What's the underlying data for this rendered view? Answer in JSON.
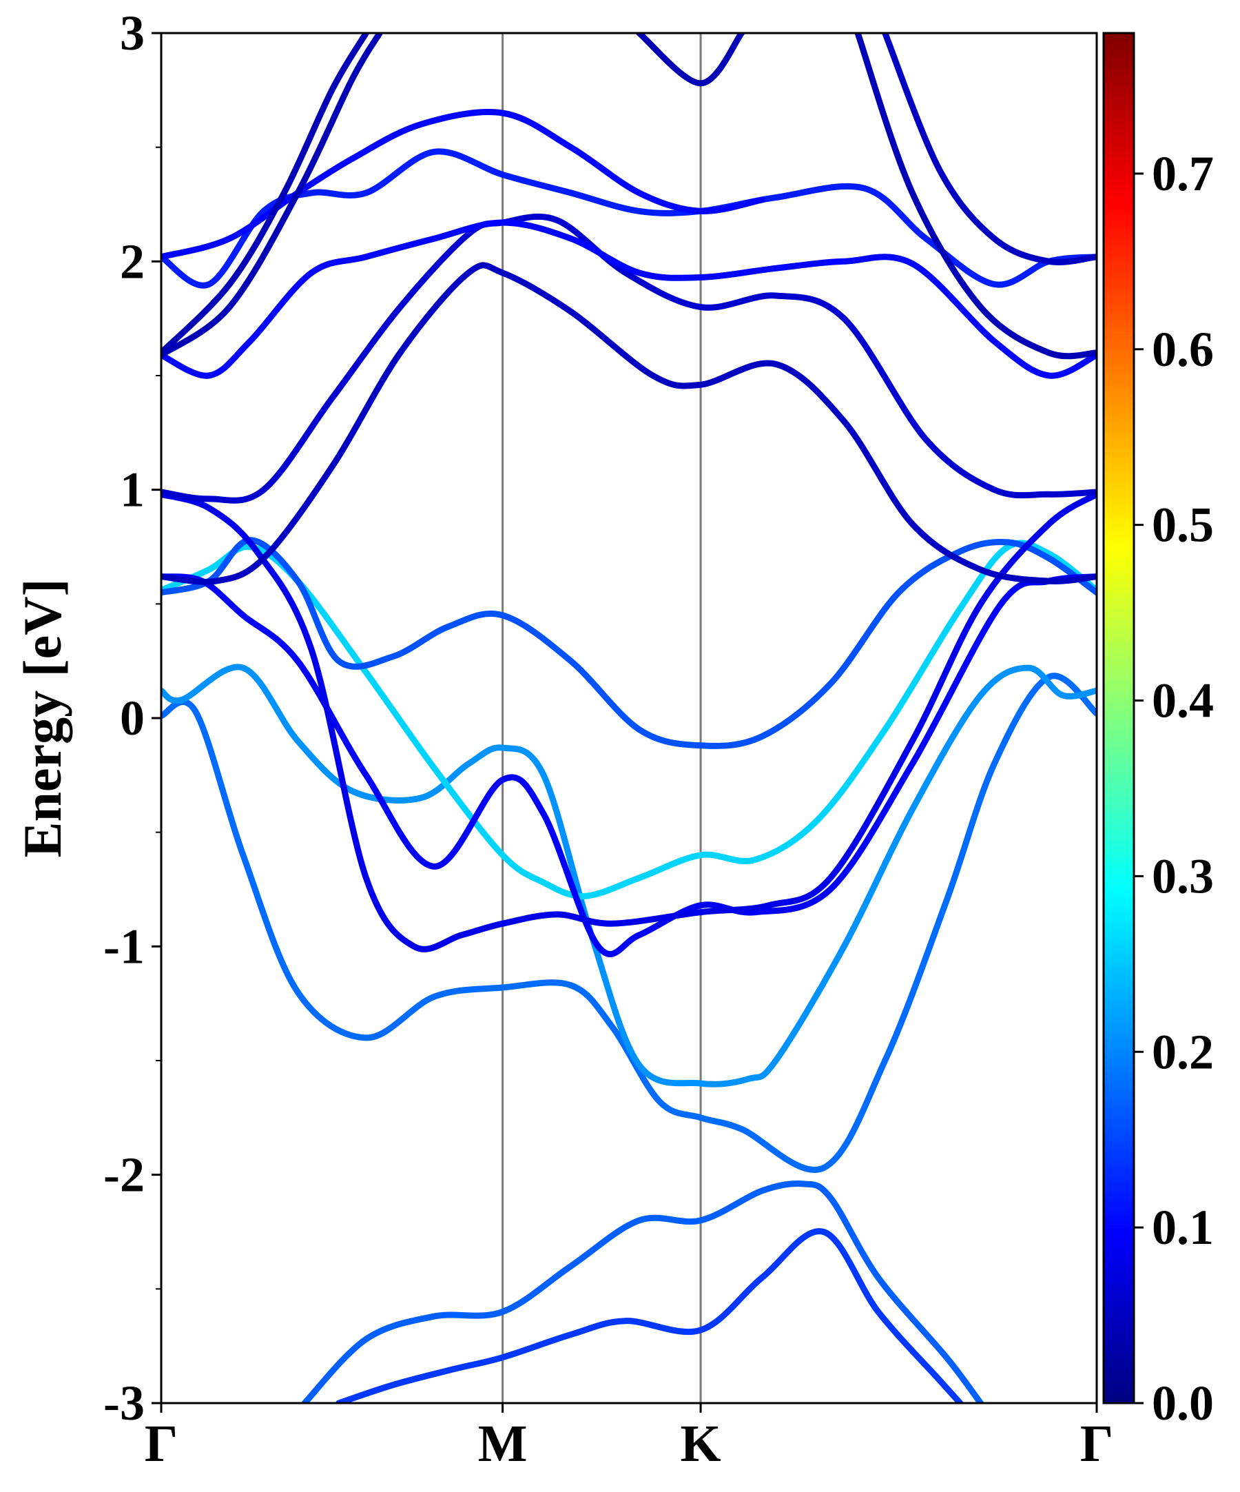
{
  "chart_data": {
    "type": "line",
    "title": "",
    "xlabel": "",
    "ylabel": "Energy [eV]",
    "ylim": [
      -3,
      3
    ],
    "y_ticks": [
      {
        "value": 3,
        "label": "3"
      },
      {
        "value": 2,
        "label": "2"
      },
      {
        "value": 1,
        "label": "1"
      },
      {
        "value": 0,
        "label": "0"
      },
      {
        "value": -1,
        "label": "-1"
      },
      {
        "value": -2,
        "label": "-2"
      },
      {
        "value": -3,
        "label": "-3"
      }
    ],
    "y_minor_ticks": [
      2.5,
      1.5,
      0.5,
      -0.5,
      -1.5,
      -2.5
    ],
    "kpath": [
      {
        "name": "gamma-start",
        "label": "Γ",
        "x": 0.0
      },
      {
        "name": "m-point",
        "label": "M",
        "x": 0.5
      },
      {
        "name": "k-point",
        "label": "K",
        "x": 0.79
      },
      {
        "name": "gamma-end",
        "label": "Γ",
        "x": 1.37
      }
    ],
    "colorbar": {
      "colormap": "jet",
      "range": [
        0.0,
        0.78
      ],
      "ticks": [
        {
          "value": 0.0,
          "label": "0.0"
        },
        {
          "value": 0.1,
          "label": "0.1"
        },
        {
          "value": 0.2,
          "label": "0.2"
        },
        {
          "value": 0.3,
          "label": "0.3"
        },
        {
          "value": 0.4,
          "label": "0.4"
        },
        {
          "value": 0.5,
          "label": "0.5"
        },
        {
          "value": 0.6,
          "label": "0.6"
        },
        {
          "value": 0.7,
          "label": "0.7"
        }
      ]
    },
    "series": [
      {
        "name": "band-1",
        "weight": 0.17,
        "points": [
          [
            0.21,
            -3.0
          ],
          [
            0.3,
            -2.72
          ],
          [
            0.4,
            -2.62
          ],
          [
            0.5,
            -2.6
          ],
          [
            0.6,
            -2.4
          ],
          [
            0.7,
            -2.2
          ],
          [
            0.79,
            -2.2
          ],
          [
            0.88,
            -2.07
          ],
          [
            0.94,
            -2.04
          ],
          [
            0.98,
            -2.1
          ],
          [
            1.05,
            -2.45
          ],
          [
            1.15,
            -2.8
          ],
          [
            1.2,
            -3.0
          ]
        ]
      },
      {
        "name": "band-2",
        "weight": 0.14,
        "points": [
          [
            0.26,
            -3.0
          ],
          [
            0.34,
            -2.92
          ],
          [
            0.43,
            -2.85
          ],
          [
            0.5,
            -2.8
          ],
          [
            0.6,
            -2.7
          ],
          [
            0.68,
            -2.64
          ],
          [
            0.79,
            -2.68
          ],
          [
            0.88,
            -2.45
          ],
          [
            0.97,
            -2.25
          ],
          [
            1.05,
            -2.6
          ],
          [
            1.14,
            -2.9
          ],
          [
            1.17,
            -3.0
          ]
        ]
      },
      {
        "name": "band-3",
        "weight": 0.18,
        "points": [
          [
            0.0,
            0.01
          ],
          [
            0.05,
            0.03
          ],
          [
            0.12,
            -0.6
          ],
          [
            0.2,
            -1.2
          ],
          [
            0.3,
            -1.4
          ],
          [
            0.4,
            -1.22
          ],
          [
            0.5,
            -1.18
          ],
          [
            0.6,
            -1.17
          ],
          [
            0.66,
            -1.35
          ],
          [
            0.73,
            -1.68
          ],
          [
            0.79,
            -1.75
          ],
          [
            0.85,
            -1.8
          ],
          [
            0.97,
            -1.97
          ],
          [
            1.06,
            -1.5
          ],
          [
            1.15,
            -0.8
          ],
          [
            1.22,
            -0.2
          ],
          [
            1.3,
            0.18
          ],
          [
            1.37,
            0.02
          ]
        ]
      },
      {
        "name": "band-4",
        "weight": 0.21,
        "points": [
          [
            0.0,
            0.12
          ],
          [
            0.03,
            0.08
          ],
          [
            0.12,
            0.22
          ],
          [
            0.2,
            -0.1
          ],
          [
            0.28,
            -0.32
          ],
          [
            0.38,
            -0.35
          ],
          [
            0.45,
            -0.2
          ],
          [
            0.5,
            -0.13
          ],
          [
            0.56,
            -0.25
          ],
          [
            0.63,
            -0.95
          ],
          [
            0.7,
            -1.52
          ],
          [
            0.79,
            -1.6
          ],
          [
            0.86,
            -1.58
          ],
          [
            0.9,
            -1.5
          ],
          [
            1.0,
            -1.0
          ],
          [
            1.1,
            -0.4
          ],
          [
            1.2,
            0.1
          ],
          [
            1.27,
            0.22
          ],
          [
            1.32,
            0.1
          ],
          [
            1.37,
            0.12
          ]
        ]
      },
      {
        "name": "band-5",
        "weight": 0.26,
        "points": [
          [
            0.0,
            0.56
          ],
          [
            0.07,
            0.65
          ],
          [
            0.13,
            0.75
          ],
          [
            0.2,
            0.6
          ],
          [
            0.3,
            0.2
          ],
          [
            0.4,
            -0.22
          ],
          [
            0.5,
            -0.6
          ],
          [
            0.56,
            -0.72
          ],
          [
            0.62,
            -0.78
          ],
          [
            0.7,
            -0.7
          ],
          [
            0.79,
            -0.6
          ],
          [
            0.87,
            -0.62
          ],
          [
            0.96,
            -0.45
          ],
          [
            1.06,
            -0.05
          ],
          [
            1.17,
            0.48
          ],
          [
            1.24,
            0.75
          ],
          [
            1.3,
            0.72
          ],
          [
            1.37,
            0.56
          ]
        ]
      },
      {
        "name": "band-6",
        "weight": 0.16,
        "points": [
          [
            0.0,
            0.55
          ],
          [
            0.07,
            0.6
          ],
          [
            0.13,
            0.78
          ],
          [
            0.2,
            0.6
          ],
          [
            0.26,
            0.25
          ],
          [
            0.34,
            0.27
          ],
          [
            0.42,
            0.4
          ],
          [
            0.5,
            0.45
          ],
          [
            0.6,
            0.25
          ],
          [
            0.7,
            -0.05
          ],
          [
            0.79,
            -0.12
          ],
          [
            0.88,
            -0.08
          ],
          [
            0.98,
            0.15
          ],
          [
            1.08,
            0.55
          ],
          [
            1.17,
            0.73
          ],
          [
            1.24,
            0.77
          ],
          [
            1.3,
            0.7
          ],
          [
            1.37,
            0.55
          ]
        ]
      },
      {
        "name": "band-7",
        "weight": 0.09,
        "points": [
          [
            0.0,
            0.62
          ],
          [
            0.06,
            0.6
          ],
          [
            0.12,
            0.45
          ],
          [
            0.2,
            0.25
          ],
          [
            0.3,
            -0.25
          ],
          [
            0.4,
            -0.65
          ],
          [
            0.5,
            -0.27
          ],
          [
            0.56,
            -0.42
          ],
          [
            0.64,
            -1.0
          ],
          [
            0.7,
            -0.95
          ],
          [
            0.79,
            -0.82
          ],
          [
            0.87,
            -0.85
          ],
          [
            0.98,
            -0.75
          ],
          [
            1.1,
            -0.2
          ],
          [
            1.23,
            0.5
          ],
          [
            1.3,
            0.6
          ],
          [
            1.37,
            0.62
          ]
        ]
      },
      {
        "name": "band-8",
        "weight": 0.08,
        "points": [
          [
            0.0,
            0.98
          ],
          [
            0.07,
            0.92
          ],
          [
            0.14,
            0.73
          ],
          [
            0.22,
            0.3
          ],
          [
            0.3,
            -0.7
          ],
          [
            0.37,
            -1.0
          ],
          [
            0.44,
            -0.95
          ],
          [
            0.5,
            -0.9
          ],
          [
            0.58,
            -0.86
          ],
          [
            0.66,
            -0.9
          ],
          [
            0.79,
            -0.85
          ],
          [
            0.89,
            -0.82
          ],
          [
            0.98,
            -0.7
          ],
          [
            1.1,
            -0.1
          ],
          [
            1.2,
            0.5
          ],
          [
            1.3,
            0.85
          ],
          [
            1.37,
            0.98
          ]
        ]
      },
      {
        "name": "band-9",
        "weight": 0.05,
        "points": [
          [
            0.0,
            0.62
          ],
          [
            0.08,
            0.6
          ],
          [
            0.15,
            0.7
          ],
          [
            0.25,
            1.1
          ],
          [
            0.35,
            1.6
          ],
          [
            0.45,
            1.95
          ],
          [
            0.5,
            1.95
          ],
          [
            0.6,
            1.78
          ],
          [
            0.72,
            1.5
          ],
          [
            0.79,
            1.46
          ],
          [
            0.9,
            1.55
          ],
          [
            1.0,
            1.3
          ],
          [
            1.1,
            0.85
          ],
          [
            1.2,
            0.65
          ],
          [
            1.3,
            0.6
          ],
          [
            1.37,
            0.62
          ]
        ]
      },
      {
        "name": "band-10",
        "weight": 0.06,
        "points": [
          [
            0.0,
            0.99
          ],
          [
            0.07,
            0.96
          ],
          [
            0.15,
            1.0
          ],
          [
            0.25,
            1.4
          ],
          [
            0.35,
            1.8
          ],
          [
            0.45,
            2.12
          ],
          [
            0.5,
            2.17
          ],
          [
            0.58,
            2.18
          ],
          [
            0.68,
            1.95
          ],
          [
            0.79,
            1.8
          ],
          [
            0.9,
            1.85
          ],
          [
            1.0,
            1.75
          ],
          [
            1.12,
            1.22
          ],
          [
            1.22,
            1.0
          ],
          [
            1.3,
            0.98
          ],
          [
            1.37,
            0.99
          ]
        ]
      },
      {
        "name": "band-11",
        "weight": 0.1,
        "points": [
          [
            0.0,
            1.59
          ],
          [
            0.07,
            1.5
          ],
          [
            0.13,
            1.65
          ],
          [
            0.22,
            1.95
          ],
          [
            0.3,
            2.02
          ],
          [
            0.4,
            2.1
          ],
          [
            0.5,
            2.17
          ],
          [
            0.6,
            2.1
          ],
          [
            0.7,
            1.95
          ],
          [
            0.79,
            1.93
          ],
          [
            0.9,
            1.97
          ],
          [
            1.0,
            2.0
          ],
          [
            1.1,
            1.99
          ],
          [
            1.22,
            1.65
          ],
          [
            1.3,
            1.5
          ],
          [
            1.37,
            1.59
          ]
        ]
      },
      {
        "name": "band-12",
        "weight": 0.12,
        "points": [
          [
            0.0,
            2.02
          ],
          [
            0.07,
            1.9
          ],
          [
            0.15,
            2.22
          ],
          [
            0.22,
            2.3
          ],
          [
            0.3,
            2.3
          ],
          [
            0.4,
            2.48
          ],
          [
            0.5,
            2.38
          ],
          [
            0.6,
            2.3
          ],
          [
            0.7,
            2.22
          ],
          [
            0.79,
            2.22
          ],
          [
            0.9,
            2.28
          ],
          [
            1.03,
            2.32
          ],
          [
            1.12,
            2.1
          ],
          [
            1.22,
            1.9
          ],
          [
            1.3,
            2.0
          ],
          [
            1.37,
            2.02
          ]
        ]
      },
      {
        "name": "band-13",
        "weight": 0.1,
        "points": [
          [
            0.0,
            2.02
          ],
          [
            0.1,
            2.1
          ],
          [
            0.2,
            2.3
          ],
          [
            0.28,
            2.45
          ],
          [
            0.38,
            2.6
          ],
          [
            0.5,
            2.65
          ],
          [
            0.6,
            2.5
          ],
          [
            0.7,
            2.3
          ],
          [
            0.79,
            2.22
          ],
          [
            0.88,
            2.27
          ]
        ]
      },
      {
        "name": "band-14",
        "weight": 0.04,
        "points": [
          [
            0.0,
            1.59
          ],
          [
            0.1,
            1.8
          ],
          [
            0.2,
            2.3
          ],
          [
            0.28,
            2.8
          ],
          [
            0.32,
            3.0
          ]
        ]
      },
      {
        "name": "band-15",
        "weight": 0.04,
        "points": [
          [
            0.0,
            1.6
          ],
          [
            0.1,
            1.9
          ],
          [
            0.18,
            2.3
          ],
          [
            0.25,
            2.75
          ],
          [
            0.3,
            3.0
          ]
        ]
      },
      {
        "name": "band-16",
        "weight": 0.04,
        "points": [
          [
            0.7,
            3.0
          ],
          [
            0.79,
            2.78
          ],
          [
            0.85,
            3.0
          ]
        ]
      },
      {
        "name": "band-17",
        "weight": 0.04,
        "points": [
          [
            1.02,
            3.0
          ],
          [
            1.1,
            2.3
          ],
          [
            1.2,
            1.8
          ],
          [
            1.3,
            1.6
          ],
          [
            1.37,
            1.6
          ]
        ]
      },
      {
        "name": "band-18",
        "weight": 0.05,
        "points": [
          [
            1.06,
            3.0
          ],
          [
            1.14,
            2.4
          ],
          [
            1.22,
            2.1
          ],
          [
            1.3,
            2.0
          ],
          [
            1.37,
            2.02
          ]
        ]
      }
    ]
  }
}
